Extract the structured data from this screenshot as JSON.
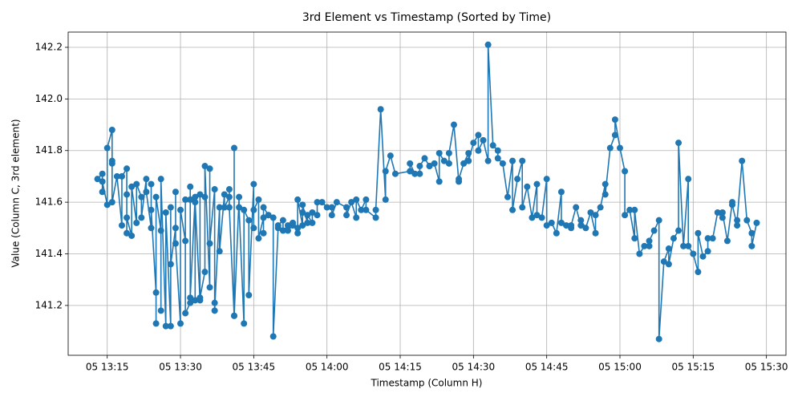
{
  "chart_data": {
    "type": "line",
    "title": "3rd Element vs Timestamp (Sorted by Time)",
    "x_label": "Timestamp (Column H)",
    "y_label": "Value (Column C, 3rd element)",
    "color": "#1f77b4",
    "grid": true,
    "markers": true,
    "xlim": [
      "05 13:07",
      "05 15:34"
    ],
    "xticks": [
      "05 13:15",
      "05 13:30",
      "05 13:45",
      "05 14:00",
      "05 14:15",
      "05 14:30",
      "05 14:45",
      "05 15:00",
      "05 15:15",
      "05 15:30"
    ],
    "ylim": [
      141.007,
      142.259
    ],
    "yticks": [
      141.2,
      141.4,
      141.6,
      141.8,
      {
        "value": 142,
        "label": "142.0"
      },
      142.2
    ],
    "x": [
      "05 13:13",
      "05 13:14",
      "05 13:14",
      "05 13:14",
      "05 13:15",
      "05 13:15",
      "05 13:16",
      "05 13:16",
      "05 13:16",
      "05 13:16",
      "05 13:17",
      "05 13:18",
      "05 13:18",
      "05 13:19",
      "05 13:19",
      "05 13:19",
      "05 13:19",
      "05 13:20",
      "05 13:20",
      "05 13:21",
      "05 13:21",
      "05 13:22",
      "05 13:22",
      "05 13:23",
      "05 13:23",
      "05 13:24",
      "05 13:24",
      "05 13:24",
      "05 13:25",
      "05 13:25",
      "05 13:25",
      "05 13:26",
      "05 13:26",
      "05 13:26",
      "05 13:27",
      "05 13:27",
      "05 13:28",
      "05 13:28",
      "05 13:28",
      "05 13:29",
      "05 13:29",
      "05 13:29",
      "05 13:30",
      "05 13:30",
      "05 13:31",
      "05 13:31",
      "05 13:31",
      "05 13:32",
      "05 13:32",
      "05 13:32",
      "05 13:32",
      "05 13:33",
      "05 13:33",
      "05 13:33",
      "05 13:34",
      "05 13:34",
      "05 13:34",
      "05 13:35",
      "05 13:35",
      "05 13:35",
      "05 13:36",
      "05 13:36",
      "05 13:36",
      "05 13:37",
      "05 13:37",
      "05 13:37",
      "05 13:38",
      "05 13:38",
      "05 13:39",
      "05 13:39",
      "05 13:40",
      "05 13:40",
      "05 13:40",
      "05 13:41",
      "05 13:41",
      "05 13:41",
      "05 13:42",
      "05 13:42",
      "05 13:43",
      "05 13:43",
      "05 13:44",
      "05 13:44",
      "05 13:45",
      "05 13:45",
      "05 13:45",
      "05 13:46",
      "05 13:46",
      "05 13:47",
      "05 13:47",
      "05 13:47",
      "05 13:48",
      "05 13:48",
      "05 13:49",
      "05 13:49",
      "05 13:50",
      "05 13:50",
      "05 13:51",
      "05 13:51",
      "05 13:52",
      "05 13:52",
      "05 13:53",
      "05 13:53",
      "05 13:54",
      "05 13:54",
      "05 13:54",
      "05 13:55",
      "05 13:55",
      "05 13:55",
      "05 13:56",
      "05 13:56",
      "05 13:57",
      "05 13:57",
      "05 13:58",
      "05 13:58",
      "05 13:59",
      "05 14:00",
      "05 14:01",
      "05 14:01",
      "05 14:02",
      "05 14:04",
      "05 14:04",
      "05 14:05",
      "05 14:06",
      "05 14:06",
      "05 14:07",
      "05 14:08",
      "05 14:08",
      "05 14:10",
      "05 14:10",
      "05 14:11",
      "05 14:12",
      "05 14:12",
      "05 14:13",
      "05 14:14",
      "05 14:17",
      "05 14:17",
      "05 14:18",
      "05 14:19",
      "05 14:19",
      "05 14:20",
      "05 14:21",
      "05 14:21",
      "05 14:22",
      "05 14:23",
      "05 14:23",
      "05 14:24",
      "05 14:25",
      "05 14:25",
      "05 14:26",
      "05 14:27",
      "05 14:27",
      "05 14:28",
      "05 14:29",
      "05 14:29",
      "05 14:30",
      "05 14:31",
      "05 14:31",
      "05 14:32",
      "05 14:33",
      "05 14:33",
      "05 14:34",
      "05 14:35",
      "05 14:35",
      "05 14:36",
      "05 14:37",
      "05 14:38",
      "05 14:38",
      "05 14:39",
      "05 14:40",
      "05 14:40",
      "05 14:41",
      "05 14:42",
      "05 14:43",
      "05 14:43",
      "05 14:44",
      "05 14:45",
      "05 14:45",
      "05 14:46",
      "05 14:47",
      "05 14:48",
      "05 14:48",
      "05 14:49",
      "05 14:50",
      "05 14:50",
      "05 14:51",
      "05 14:52",
      "05 14:52",
      "05 14:53",
      "05 14:54",
      "05 14:55",
      "05 14:55",
      "05 14:56",
      "05 14:57",
      "05 14:57",
      "05 14:58",
      "05 14:59",
      "05 14:59",
      "05 15:00",
      "05 15:01",
      "05 15:01",
      "05 15:02",
      "05 15:03",
      "05 15:03",
      "05 15:04",
      "05 15:05",
      "05 15:06",
      "05 15:06",
      "05 15:07",
      "05 15:08",
      "05 15:08",
      "05 15:09",
      "05 15:10",
      "05 15:10",
      "05 15:11",
      "05 15:12",
      "05 15:12",
      "05 15:13",
      "05 15:14",
      "05 15:14",
      "05 15:15",
      "05 15:16",
      "05 15:16",
      "05 15:17",
      "05 15:18",
      "05 15:18",
      "05 15:19",
      "05 15:20",
      "05 15:21",
      "05 15:21",
      "05 15:22",
      "05 15:23",
      "05 15:23",
      "05 15:24",
      "05 15:24",
      "05 15:25",
      "05 15:26",
      "05 15:27",
      "05 15:27",
      "05 15:28"
    ],
    "values": [
      141.69,
      141.71,
      141.64,
      141.68,
      141.59,
      141.81,
      141.88,
      141.75,
      141.76,
      141.6,
      141.7,
      141.51,
      141.7,
      141.73,
      141.63,
      141.48,
      141.54,
      141.47,
      141.66,
      141.52,
      141.67,
      141.62,
      141.54,
      141.69,
      141.64,
      141.5,
      141.67,
      141.57,
      141.25,
      141.13,
      141.62,
      141.49,
      141.18,
      141.69,
      141.12,
      141.56,
      141.12,
      141.58,
      141.36,
      141.5,
      141.64,
      141.44,
      141.13,
      141.57,
      141.45,
      141.61,
      141.17,
      141.21,
      141.61,
      141.66,
      141.23,
      141.62,
      141.22,
      141.6,
      141.22,
      141.63,
      141.23,
      141.33,
      141.62,
      141.74,
      141.27,
      141.73,
      141.44,
      141.65,
      141.21,
      141.18,
      141.58,
      141.41,
      141.63,
      141.58,
      141.62,
      141.65,
      141.58,
      141.16,
      141.81,
      141.16,
      141.62,
      141.58,
      141.13,
      141.57,
      141.53,
      141.24,
      141.67,
      141.5,
      141.57,
      141.61,
      141.46,
      141.54,
      141.48,
      141.58,
      141.55,
      141.55,
      141.54,
      141.08,
      141.5,
      141.51,
      141.53,
      141.49,
      141.51,
      141.49,
      141.51,
      141.52,
      141.48,
      141.5,
      141.61,
      141.51,
      141.56,
      141.59,
      141.52,
      141.55,
      141.52,
      141.56,
      141.55,
      141.6,
      141.6,
      141.58,
      141.58,
      141.55,
      141.6,
      141.58,
      141.55,
      141.6,
      141.54,
      141.61,
      141.57,
      141.61,
      141.57,
      141.54,
      141.57,
      141.96,
      141.61,
      141.72,
      141.78,
      141.71,
      141.72,
      141.75,
      141.71,
      141.71,
      141.74,
      141.77,
      141.74,
      141.74,
      141.75,
      141.68,
      141.79,
      141.76,
      141.75,
      141.79,
      141.9,
      141.68,
      141.69,
      141.75,
      141.79,
      141.76,
      141.83,
      141.86,
      141.8,
      141.84,
      141.76,
      142.21,
      141.82,
      141.8,
      141.77,
      141.75,
      141.62,
      141.76,
      141.57,
      141.69,
      141.76,
      141.58,
      141.66,
      141.54,
      141.67,
      141.55,
      141.54,
      141.69,
      141.51,
      141.52,
      141.48,
      141.64,
      141.52,
      141.51,
      141.5,
      141.51,
      141.58,
      141.51,
      141.53,
      141.5,
      141.56,
      141.48,
      141.55,
      141.58,
      141.67,
      141.63,
      141.81,
      141.86,
      141.92,
      141.81,
      141.72,
      141.55,
      141.57,
      141.46,
      141.57,
      141.4,
      141.43,
      141.43,
      141.45,
      141.49,
      141.53,
      141.07,
      141.37,
      141.42,
      141.36,
      141.46,
      141.49,
      141.83,
      141.43,
      141.69,
      141.43,
      141.4,
      141.33,
      141.48,
      141.39,
      141.41,
      141.46,
      141.46,
      141.56,
      141.54,
      141.56,
      141.45,
      141.6,
      141.59,
      141.51,
      141.53,
      141.76,
      141.53,
      141.48,
      141.43,
      141.52
    ]
  }
}
